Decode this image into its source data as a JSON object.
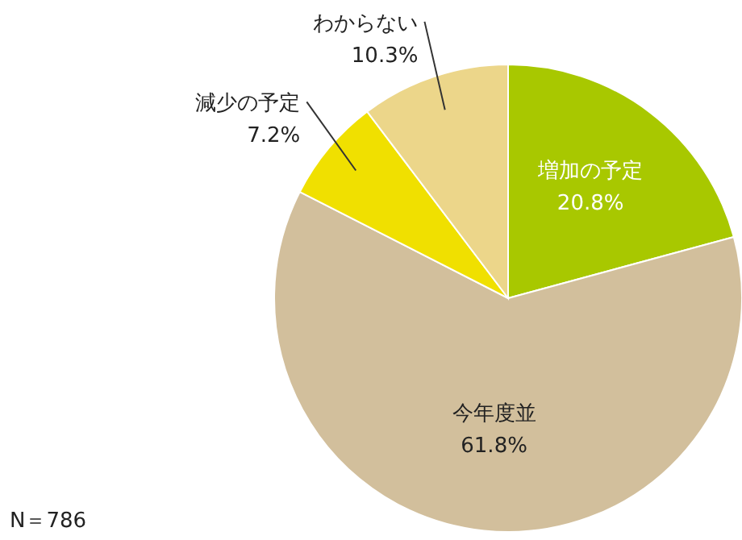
{
  "chart_data": {
    "type": "pie",
    "categories": [
      "増加の予定",
      "今年度並",
      "減少の予定",
      "わからない"
    ],
    "values": [
      20.8,
      61.8,
      7.2,
      10.3
    ],
    "colors": [
      "#a8c800",
      "#d2bf9c",
      "#f0e000",
      "#ecd68a"
    ],
    "value_labels": [
      "20.8%",
      "61.8%",
      "7.2%",
      "10.3%"
    ],
    "annotations": [
      "N＝786"
    ]
  }
}
